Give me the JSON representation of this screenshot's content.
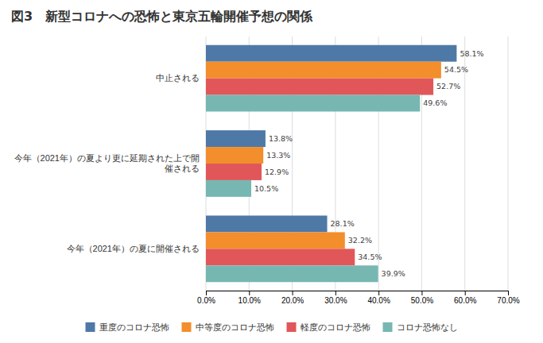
{
  "chart_data": {
    "type": "bar",
    "orientation": "horizontal",
    "title": "図3　新型コロナへの恐怖と東京五輪開催予想の関係",
    "categories": [
      "今年（2021年）の夏に開催される",
      "今年（2021年）の夏より更に延期された上で開\n催される",
      "中止される"
    ],
    "series": [
      {
        "name": "重度のコロナ恐怖",
        "values": [
          28.1,
          13.8,
          58.1
        ],
        "value_labels": [
          "28.1%",
          "13.8%",
          "58.1%"
        ]
      },
      {
        "name": "中等度のコロナ恐怖",
        "values": [
          32.2,
          13.3,
          54.5
        ],
        "value_labels": [
          "32.2%",
          "13.3%",
          "54.5%"
        ]
      },
      {
        "name": "軽度のコロナ恐怖",
        "values": [
          34.5,
          12.9,
          52.7
        ],
        "value_labels": [
          "34.5%",
          "12.9%",
          "52.7%"
        ]
      },
      {
        "name": "コロナ恐怖なし",
        "values": [
          39.9,
          10.5,
          49.6
        ],
        "value_labels": [
          "39.9%",
          "10.5%",
          "49.6%"
        ]
      }
    ],
    "xlim": [
      0,
      70
    ],
    "xticks": [
      {
        "value": 0,
        "label": "0.0%"
      },
      {
        "value": 10,
        "label": "10.0%"
      },
      {
        "value": 20,
        "label": "20.0%"
      },
      {
        "value": 30,
        "label": "30.0%"
      },
      {
        "value": 40,
        "label": "40.0%"
      },
      {
        "value": 50,
        "label": "50.0%"
      },
      {
        "value": 60,
        "label": "60.0%"
      },
      {
        "value": 70,
        "label": "70.0%"
      }
    ],
    "grid": true,
    "data_labels": true,
    "legend": "bottom"
  }
}
